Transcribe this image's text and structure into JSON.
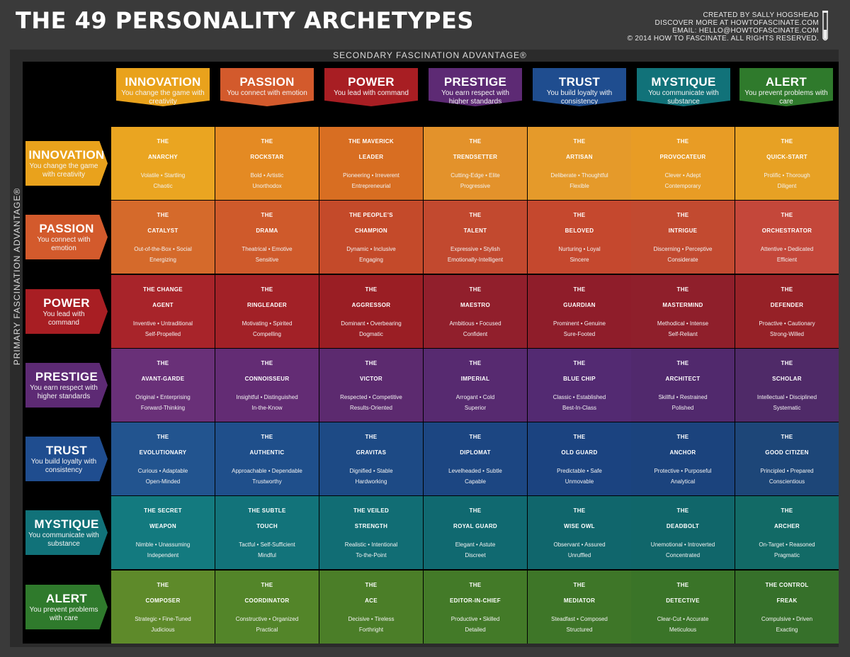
{
  "header": {
    "title": "THE 49 PERSONALITY ARCHETYPES",
    "credits": [
      "CREATED BY SALLY HOGSHEAD",
      "DISCOVER MORE AT HOWTOFASCINATE.COM",
      "EMAIL: HELLO@HOWTOFASCINATE.COM",
      "© 2014 HOW TO FASCINATE. ALL RIGHTS RESERVED."
    ]
  },
  "axes": {
    "secondary": "SECONDARY FASCINATION ADVANTAGE®",
    "primary": "PRIMARY FASCINATION ADVANTAGE®"
  },
  "advantages": [
    {
      "name": "INNOVATION",
      "desc": "You change the game with creativity",
      "color": "#e9a21c"
    },
    {
      "name": "PASSION",
      "desc": "You connect with emotion",
      "color": "#d35a2c"
    },
    {
      "name": "POWER",
      "desc": "You lead with command",
      "color": "#a81e23"
    },
    {
      "name": "PRESTIGE",
      "desc": "You earn respect with higher standards",
      "color": "#5d2a74"
    },
    {
      "name": "TRUST",
      "desc": "You build loyalty with consistency",
      "color": "#1f4d8f"
    },
    {
      "name": "MYSTIQUE",
      "desc": "You communicate with substance",
      "color": "#117279"
    },
    {
      "name": "ALERT",
      "desc": "You prevent problems with care",
      "color": "#2f7a2c"
    }
  ],
  "grid": [
    [
      {
        "name": "THE\nANARCHY",
        "traits": "Volatile • Startling\nChaotic",
        "color": "#eaa521"
      },
      {
        "name": "THE\nROCKSTAR",
        "traits": "Bold • Artistic\nUnorthodox",
        "color": "#e48a23"
      },
      {
        "name": "THE MAVERICK\nLEADER",
        "traits": "Pioneering • Irreverent\nEntrepreneurial",
        "color": "#d86e22"
      },
      {
        "name": "THE\nTRENDSETTER",
        "traits": "Cutting-Edge • Elite\nProgressive",
        "color": "#e3922b"
      },
      {
        "name": "THE\nARTISAN",
        "traits": "Deliberate • Thoughtful\nFlexible",
        "color": "#e59a2a"
      },
      {
        "name": "THE\nPROVOCATEUR",
        "traits": "Clever • Adept\nContemporary",
        "color": "#e89c25"
      },
      {
        "name": "THE\nQUICK-START",
        "traits": "Prolific • Thorough\nDiligent",
        "color": "#e7a124"
      }
    ],
    [
      {
        "name": "THE\nCATALYST",
        "traits": "Out-of-the-Box • Social\nEnergizing",
        "color": "#d56a2b"
      },
      {
        "name": "THE\nDRAMA",
        "traits": "Theatrical • Emotive\nSensitive",
        "color": "#cf5a2b"
      },
      {
        "name": "THE PEOPLE’S\nCHAMPION",
        "traits": "Dynamic • Inclusive\nEngaging",
        "color": "#c44a2a"
      },
      {
        "name": "THE\nTALENT",
        "traits": "Expressive • Stylish\nEmotionally-Intelligent",
        "color": "#c2492f"
      },
      {
        "name": "THE\nBELOVED",
        "traits": "Nurturing • Loyal\nSincere",
        "color": "#c5482e"
      },
      {
        "name": "THE\nINTRIGUE",
        "traits": "Discerning • Perceptive\nConsiderate",
        "color": "#c24a30"
      },
      {
        "name": "THE\nORCHESTRATOR",
        "traits": "Attentive • Dedicated\nEfficient",
        "color": "#c4473a"
      }
    ],
    [
      {
        "name": "THE CHANGE\nAGENT",
        "traits": "Inventive • Untraditional\nSelf-Propelled",
        "color": "#a8242a"
      },
      {
        "name": "THE\nRINGLEADER",
        "traits": "Motivating • Spirited\nCompelling",
        "color": "#a22127"
      },
      {
        "name": "THE\nAGGRESSOR",
        "traits": "Dominant • Overbearing\nDogmatic",
        "color": "#9a1e24"
      },
      {
        "name": "THE\nMAESTRO",
        "traits": "Ambitious • Focused\nConfident",
        "color": "#911f2c"
      },
      {
        "name": "THE\nGUARDIAN",
        "traits": "Prominent • Genuine\nSure-Footed",
        "color": "#8f1d2a"
      },
      {
        "name": "THE\nMASTERMIND",
        "traits": "Methodical • Intense\nSelf-Reliant",
        "color": "#8f1f2b"
      },
      {
        "name": "THE\nDEFENDER",
        "traits": "Proactive • Cautionary\nStrong-Willed",
        "color": "#962127"
      }
    ],
    [
      {
        "name": "THE\nAVANT-GARDE",
        "traits": "Original • Enterprising\nForward-Thinking",
        "color": "#693078"
      },
      {
        "name": "THE\nCONNOISSEUR",
        "traits": "Insightful • Distinguished\nIn-the-Know",
        "color": "#632c74"
      },
      {
        "name": "THE\nVICTOR",
        "traits": "Respected • Competitive\nResults-Oriented",
        "color": "#5c2a6f"
      },
      {
        "name": "THE\nIMPERIAL",
        "traits": "Arrogant • Cold\nSuperior",
        "color": "#572a70"
      },
      {
        "name": "THE\nBLUE CHIP",
        "traits": "Classic • Established\nBest-In-Class",
        "color": "#532a72"
      },
      {
        "name": "THE\nARCHITECT",
        "traits": "Skillful • Restrained\nPolished",
        "color": "#51296d"
      },
      {
        "name": "THE\nSCHOLAR",
        "traits": "Intellectual • Disciplined\nSystematic",
        "color": "#4f2a68"
      }
    ],
    [
      {
        "name": "THE\nEVOLUTIONARY",
        "traits": "Curious • Adaptable\nOpen-Minded",
        "color": "#22548f"
      },
      {
        "name": "THE\nAUTHENTIC",
        "traits": "Approachable • Dependable\nTrustworthy",
        "color": "#1f4f8b"
      },
      {
        "name": "THE\nGRAVITAS",
        "traits": "Dignified • Stable\nHardworking",
        "color": "#1d4a85"
      },
      {
        "name": "THE\nDIPLOMAT",
        "traits": "Levelheaded • Subtle\nCapable",
        "color": "#1c4682"
      },
      {
        "name": "THE\nOLD GUARD",
        "traits": "Predictable • Safe\nUnmovable",
        "color": "#1b4380"
      },
      {
        "name": "THE\nANCHOR",
        "traits": "Protective • Purposeful\nAnalytical",
        "color": "#1b437d"
      },
      {
        "name": "THE\nGOOD CITIZEN",
        "traits": "Principled • Prepared\nConscientious",
        "color": "#1d4678"
      }
    ],
    [
      {
        "name": "THE SECRET\nWEAPON",
        "traits": "Nimble • Unassuming\nIndependent",
        "color": "#137a7f"
      },
      {
        "name": "THE SUBTLE\nTOUCH",
        "traits": "Tactful • Self-Sufficient\nMindful",
        "color": "#12737a"
      },
      {
        "name": "THE VEILED\nSTRENGTH",
        "traits": "Realistic • Intentional\nTo-the-Point",
        "color": "#116d74"
      },
      {
        "name": "THE\nROYAL GUARD",
        "traits": "Elegant • Astute\nDiscreet",
        "color": "#106970"
      },
      {
        "name": "THE\nWISE OWL",
        "traits": "Observant • Assured\nUnruffled",
        "color": "#10666c"
      },
      {
        "name": "THE\nDEADBOLT",
        "traits": "Unemotional • Introverted\nConcentrated",
        "color": "#10666a"
      },
      {
        "name": "THE\nARCHER",
        "traits": "On-Target • Reasoned\nPragmatic",
        "color": "#126a66"
      }
    ],
    [
      {
        "name": "THE\nCOMPOSER",
        "traits": "Strategic • Fine-Tuned\nJudicious",
        "color": "#5e8a2a"
      },
      {
        "name": "THE\nCOORDINATOR",
        "traits": "Constructive • Organized\nPractical",
        "color": "#538529"
      },
      {
        "name": "THE\nACE",
        "traits": "Decisive • Tireless\nForthright",
        "color": "#4b7e28"
      },
      {
        "name": "THE\nEDITOR-IN-CHIEF",
        "traits": "Productive • Skilled\nDetailed",
        "color": "#437a28"
      },
      {
        "name": "THE\nMEDIATOR",
        "traits": "Steadfast • Composed\nStructured",
        "color": "#3e7628"
      },
      {
        "name": "THE\nDETECTIVE",
        "traits": "Clear-Cut • Accurate\nMeticulous",
        "color": "#3a7428"
      },
      {
        "name": "THE CONTROL\nFREAK",
        "traits": "Compulsive • Driven\nExacting",
        "color": "#36702a"
      }
    ]
  ]
}
